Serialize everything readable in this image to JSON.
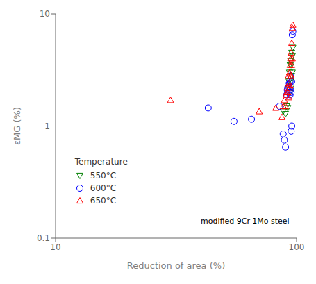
{
  "chart_data": {
    "type": "scatter",
    "title": "",
    "xlabel": "Reduction of area (%)",
    "ylabel": "εMG (%)",
    "log": true,
    "xlim": [
      10,
      100
    ],
    "ylim": [
      0.1,
      10
    ],
    "xticks": [
      10,
      100
    ],
    "yticks": [
      0.1,
      1,
      10
    ],
    "grid": false,
    "legend": "lower left",
    "legend_title": "Temperature",
    "annotation": "modified 9Cr-1Mo steel",
    "series": [
      {
        "name": "550°C",
        "color": "#008000",
        "marker": "triangle-down",
        "x": [
          88,
          90,
          91,
          92,
          92.5,
          93,
          93.5,
          94,
          94,
          94.5,
          94.5,
          95,
          95,
          95.5,
          95.5,
          96,
          96,
          96.5
        ],
        "values": [
          1.35,
          1.28,
          1.5,
          1.45,
          2.2,
          2.5,
          3.0,
          2.0,
          3.5,
          2.5,
          3.8,
          2.2,
          3.5,
          2.8,
          4.5,
          3.0,
          4.2,
          5.0
        ]
      },
      {
        "name": "600°C",
        "color": "#0000FF",
        "marker": "circle",
        "x": [
          43,
          55,
          65,
          85,
          88,
          89,
          90,
          91,
          91.5,
          92,
          92.5,
          93,
          93,
          93.5,
          93.5,
          94,
          94,
          94.5,
          94.5,
          95,
          95,
          95.5,
          95.5,
          96,
          96.5
        ],
        "values": [
          1.45,
          1.1,
          1.15,
          1.5,
          0.85,
          0.75,
          0.65,
          1.9,
          2.1,
          2.2,
          2.35,
          2.0,
          2.2,
          2.1,
          2.4,
          1.9,
          2.5,
          2.1,
          2.8,
          0.9,
          2.0,
          1.0,
          2.5,
          6.5,
          7.0
        ]
      },
      {
        "name": "650°C",
        "color": "#FF0000",
        "marker": "triangle-up",
        "x": [
          30,
          70,
          82,
          87,
          88,
          89,
          90,
          90.5,
          91,
          91.5,
          92,
          92.5,
          93,
          93,
          93.5,
          93.5,
          94,
          94,
          94.5,
          94.5,
          95,
          95,
          95.5,
          95.5,
          96,
          96,
          96.5
        ],
        "values": [
          1.7,
          1.35,
          1.45,
          1.2,
          1.5,
          1.7,
          1.5,
          1.9,
          2.0,
          2.2,
          2.0,
          2.8,
          1.8,
          2.4,
          2.2,
          3.0,
          2.3,
          3.5,
          2.8,
          4.0,
          2.8,
          4.5,
          3.5,
          5.5,
          4.0,
          7.5,
          8.0
        ]
      }
    ]
  }
}
